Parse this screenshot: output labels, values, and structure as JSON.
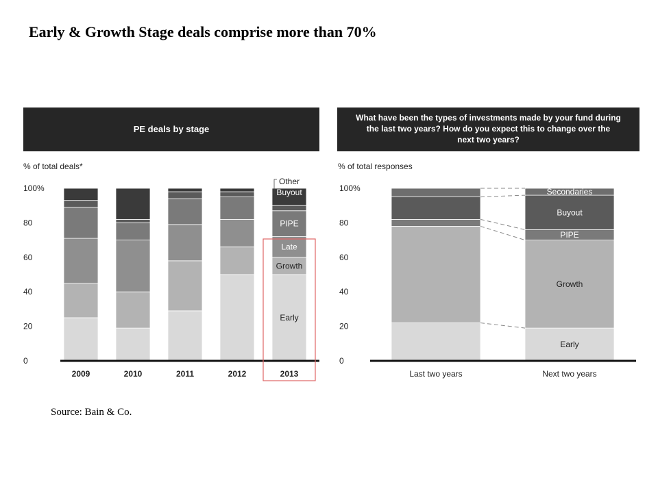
{
  "slide": {
    "title": "Early & Growth Stage deals comprise more than 70%",
    "source": "Source: Bain & Co."
  },
  "colors": {
    "early": "#d9d9d9",
    "growth": "#b3b3b3",
    "late": "#8f8f8f",
    "pipe": "#7a7a7a",
    "buyout": "#5a5a5a",
    "other": "#3a3a3a",
    "secondaries": "#6e6e6e",
    "header": "#262626",
    "highlight": "#e06666"
  },
  "chart_data": [
    {
      "type": "bar",
      "stacked": true,
      "title": "PE deals by stage",
      "ylabel": "% of total deals*",
      "ylim": [
        0,
        100
      ],
      "yticks": [
        "100%",
        "80",
        "60",
        "40",
        "20",
        "0"
      ],
      "categories": [
        "2009",
        "2010",
        "2011",
        "2012",
        "2013"
      ],
      "highlight_category": "2013",
      "series": [
        {
          "name": "Early",
          "key": "early",
          "values": [
            25,
            19,
            29,
            50,
            50
          ]
        },
        {
          "name": "Growth",
          "key": "growth",
          "values": [
            20,
            21,
            29,
            16,
            10
          ]
        },
        {
          "name": "Late",
          "key": "late",
          "values": [
            26,
            30,
            21,
            16,
            12
          ]
        },
        {
          "name": "PIPE",
          "key": "pipe",
          "values": [
            18,
            10,
            15,
            13,
            15
          ]
        },
        {
          "name": "Buyout",
          "key": "buyout",
          "values": [
            4,
            2,
            4,
            3,
            3
          ]
        },
        {
          "name": "Other",
          "key": "other",
          "values": [
            7,
            18,
            2,
            2,
            10
          ]
        }
      ]
    },
    {
      "type": "bar",
      "stacked": true,
      "title": "What have been the types of investments made by your fund during the last two years? How do you expect this to change over the next two years?",
      "ylabel": "% of total responses",
      "ylim": [
        0,
        100
      ],
      "yticks": [
        "100%",
        "80",
        "60",
        "40",
        "20",
        "0"
      ],
      "categories": [
        "Last two years",
        "Next two years"
      ],
      "series": [
        {
          "name": "Early",
          "key": "early",
          "values": [
            22,
            19
          ]
        },
        {
          "name": "Growth",
          "key": "growth",
          "values": [
            56,
            51
          ]
        },
        {
          "name": "PIPE",
          "key": "pipe",
          "values": [
            4,
            6
          ]
        },
        {
          "name": "Buyout",
          "key": "buyout",
          "values": [
            13,
            20
          ]
        },
        {
          "name": "Secondaries",
          "key": "secondaries",
          "values": [
            5,
            4
          ]
        }
      ]
    }
  ]
}
